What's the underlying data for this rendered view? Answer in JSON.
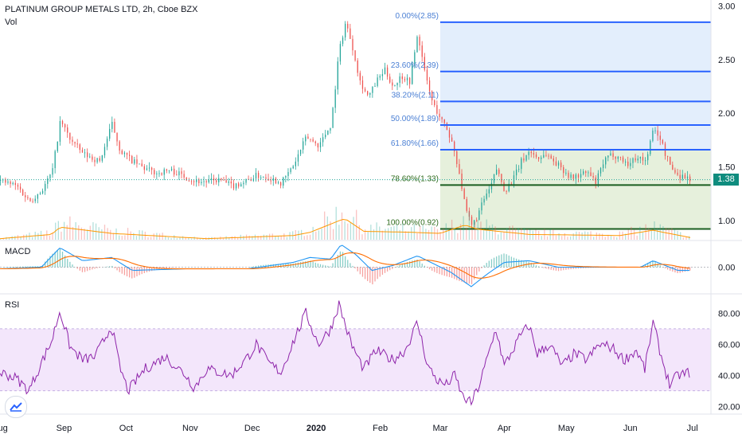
{
  "header": {
    "title": "PLATINUM GROUP METALS LTD, 2h, Cboe BZX",
    "volume_label": "Vol"
  },
  "price_badge": "1.38",
  "colors": {
    "up": "#26a69a",
    "down": "#ef5350",
    "fib_line": "#2962ff",
    "fib_line_low": "#1b5e20",
    "fib_fill_blue": "#e3eefc",
    "fib_fill_green": "#e6f0dc",
    "fib_label": "#4a7fd4",
    "fib_label_green": "#2e6b1c",
    "rsi": "#8e24aa",
    "rsi_band": "#f3e6fb",
    "macd_line": "#2196f3",
    "signal_line": "#ff6d00",
    "volume_ma": "#ff9800"
  },
  "chart_data": [
    {
      "type": "candlestick",
      "title": "PLATINUM GROUP METALS LTD, 2h, Cboe BZX",
      "ylim": [
        0.82,
        3.02
      ],
      "y_ticks": [
        "3.00",
        "2.50",
        "2.00",
        "1.50",
        "1.00"
      ],
      "y_tick_values": [
        3.0,
        2.5,
        2.0,
        1.5,
        1.0
      ],
      "current_price": 1.38,
      "x_ticks": [
        "Aug",
        "Sep",
        "Oct",
        "Nov",
        "Dec",
        "2020",
        "Feb",
        "Mar",
        "Apr",
        "May",
        "Jun",
        "Jul"
      ],
      "x_tick_positions": [
        0,
        31,
        61,
        92,
        122,
        153,
        184,
        213,
        244,
        274,
        305,
        335
      ],
      "price_path": [
        [
          0,
          1.37
        ],
        [
          8,
          1.32
        ],
        [
          14,
          1.18
        ],
        [
          20,
          1.28
        ],
        [
          25,
          1.45
        ],
        [
          29,
          1.93
        ],
        [
          34,
          1.75
        ],
        [
          40,
          1.62
        ],
        [
          48,
          1.55
        ],
        [
          54,
          1.9
        ],
        [
          58,
          1.65
        ],
        [
          64,
          1.55
        ],
        [
          70,
          1.48
        ],
        [
          76,
          1.44
        ],
        [
          82,
          1.47
        ],
        [
          88,
          1.42
        ],
        [
          94,
          1.37
        ],
        [
          100,
          1.36
        ],
        [
          106,
          1.38
        ],
        [
          112,
          1.32
        ],
        [
          118,
          1.36
        ],
        [
          124,
          1.42
        ],
        [
          130,
          1.4
        ],
        [
          136,
          1.35
        ],
        [
          142,
          1.52
        ],
        [
          148,
          1.78
        ],
        [
          154,
          1.7
        ],
        [
          160,
          1.9
        ],
        [
          164,
          2.6
        ],
        [
          167,
          2.85
        ],
        [
          170,
          2.65
        ],
        [
          174,
          2.3
        ],
        [
          178,
          2.15
        ],
        [
          182,
          2.3
        ],
        [
          186,
          2.4
        ],
        [
          190,
          2.25
        ],
        [
          194,
          2.35
        ],
        [
          198,
          2.3
        ],
        [
          202,
          2.75
        ],
        [
          205,
          2.4
        ],
        [
          209,
          2.1
        ],
        [
          213,
          1.95
        ],
        [
          216,
          1.85
        ],
        [
          219,
          1.7
        ],
        [
          222,
          1.45
        ],
        [
          225,
          1.1
        ],
        [
          228,
          0.95
        ],
        [
          231,
          1.05
        ],
        [
          234,
          1.2
        ],
        [
          237,
          1.3
        ],
        [
          240,
          1.48
        ],
        [
          244,
          1.28
        ],
        [
          248,
          1.38
        ],
        [
          252,
          1.55
        ],
        [
          256,
          1.65
        ],
        [
          260,
          1.58
        ],
        [
          264,
          1.62
        ],
        [
          268,
          1.55
        ],
        [
          272,
          1.48
        ],
        [
          276,
          1.4
        ],
        [
          280,
          1.42
        ],
        [
          284,
          1.45
        ],
        [
          288,
          1.35
        ],
        [
          292,
          1.55
        ],
        [
          296,
          1.62
        ],
        [
          300,
          1.58
        ],
        [
          304,
          1.52
        ],
        [
          308,
          1.6
        ],
        [
          312,
          1.55
        ],
        [
          316,
          1.85
        ],
        [
          319,
          1.78
        ],
        [
          322,
          1.6
        ],
        [
          325,
          1.48
        ],
        [
          328,
          1.42
        ],
        [
          331,
          1.41
        ],
        [
          334,
          1.38
        ]
      ],
      "fibonacci": [
        {
          "label": "0.00%(2.85)",
          "price": 2.85
        },
        {
          "label": "23.60%(2.39)",
          "price": 2.39
        },
        {
          "label": "38.20%(2.11)",
          "price": 2.11
        },
        {
          "label": "50.00%(1.89)",
          "price": 1.89
        },
        {
          "label": "61.80%(1.66)",
          "price": 1.66
        },
        {
          "label": "78.60%(1.33)",
          "price": 1.33
        },
        {
          "label": "100.00%(0.92)",
          "price": 0.92
        }
      ],
      "fib_start_x": 213
    },
    {
      "type": "bar",
      "title": "Vol",
      "note": "volume histogram with orange moving average, relative scale 0-1",
      "volume_profile": [
        [
          0,
          0.05
        ],
        [
          25,
          0.25
        ],
        [
          29,
          0.6
        ],
        [
          54,
          0.3
        ],
        [
          100,
          0.05
        ],
        [
          142,
          0.2
        ],
        [
          150,
          0.35
        ],
        [
          164,
          0.9
        ],
        [
          167,
          1.0
        ],
        [
          176,
          0.4
        ],
        [
          200,
          0.35
        ],
        [
          213,
          0.3
        ],
        [
          225,
          0.7
        ],
        [
          231,
          0.5
        ],
        [
          256,
          0.25
        ],
        [
          300,
          0.2
        ],
        [
          316,
          0.45
        ],
        [
          334,
          0.1
        ]
      ]
    },
    {
      "type": "line",
      "title": "MACD",
      "ylim": [
        -0.16,
        0.16
      ],
      "y_ticks": [
        "0.00"
      ],
      "y_tick_values": [
        0.0
      ],
      "series": [
        {
          "name": "MACD",
          "values": [
            [
              0,
              -0.01
            ],
            [
              20,
              0.0
            ],
            [
              29,
              0.12
            ],
            [
              40,
              0.04
            ],
            [
              54,
              0.06
            ],
            [
              64,
              -0.02
            ],
            [
              90,
              -0.01
            ],
            [
              120,
              -0.01
            ],
            [
              142,
              0.03
            ],
            [
              150,
              0.06
            ],
            [
              160,
              0.05
            ],
            [
              165,
              0.14
            ],
            [
              172,
              0.08
            ],
            [
              180,
              -0.02
            ],
            [
              190,
              0.01
            ],
            [
              202,
              0.07
            ],
            [
              210,
              0.02
            ],
            [
              218,
              -0.03
            ],
            [
              228,
              -0.12
            ],
            [
              236,
              -0.04
            ],
            [
              244,
              0.03
            ],
            [
              256,
              0.04
            ],
            [
              270,
              0.0
            ],
            [
              290,
              0.0
            ],
            [
              310,
              0.0
            ],
            [
              316,
              0.04
            ],
            [
              322,
              0.01
            ],
            [
              328,
              -0.02
            ],
            [
              334,
              -0.02
            ]
          ]
        }
      ]
    },
    {
      "type": "line",
      "title": "RSI",
      "ylim": [
        15,
        92
      ],
      "y_ticks": [
        "80.00",
        "60.00",
        "40.00",
        "20.00"
      ],
      "y_tick_values": [
        80,
        60,
        40,
        20
      ],
      "band": [
        30,
        70
      ],
      "series": [
        {
          "name": "RSI",
          "values": [
            [
              0,
              42
            ],
            [
              8,
              38
            ],
            [
              14,
              30
            ],
            [
              20,
              48
            ],
            [
              25,
              62
            ],
            [
              29,
              82
            ],
            [
              34,
              58
            ],
            [
              40,
              50
            ],
            [
              46,
              52
            ],
            [
              54,
              72
            ],
            [
              58,
              45
            ],
            [
              62,
              30
            ],
            [
              70,
              44
            ],
            [
              80,
              52
            ],
            [
              90,
              40
            ],
            [
              94,
              32
            ],
            [
              100,
              44
            ],
            [
              112,
              40
            ],
            [
              120,
              52
            ],
            [
              124,
              60
            ],
            [
              130,
              48
            ],
            [
              136,
              42
            ],
            [
              142,
              62
            ],
            [
              148,
              80
            ],
            [
              154,
              60
            ],
            [
              160,
              70
            ],
            [
              164,
              86
            ],
            [
              170,
              60
            ],
            [
              176,
              44
            ],
            [
              182,
              56
            ],
            [
              190,
              50
            ],
            [
              196,
              56
            ],
            [
              202,
              74
            ],
            [
              207,
              46
            ],
            [
              212,
              36
            ],
            [
              216,
              34
            ],
            [
              220,
              40
            ],
            [
              224,
              26
            ],
            [
              228,
              22
            ],
            [
              232,
              34
            ],
            [
              236,
              52
            ],
            [
              240,
              70
            ],
            [
              244,
              46
            ],
            [
              248,
              56
            ],
            [
              252,
              66
            ],
            [
              256,
              72
            ],
            [
              260,
              54
            ],
            [
              266,
              60
            ],
            [
              272,
              46
            ],
            [
              278,
              54
            ],
            [
              284,
              50
            ],
            [
              290,
              60
            ],
            [
              296,
              58
            ],
            [
              302,
              50
            ],
            [
              308,
              56
            ],
            [
              312,
              44
            ],
            [
              316,
              74
            ],
            [
              320,
              52
            ],
            [
              324,
              34
            ],
            [
              328,
              40
            ],
            [
              334,
              42
            ]
          ]
        }
      ]
    }
  ]
}
